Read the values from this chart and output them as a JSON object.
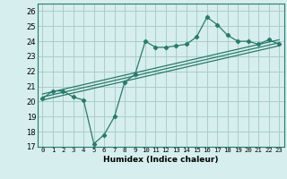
{
  "title": "",
  "xlabel": "Humidex (Indice chaleur)",
  "ylabel": "",
  "bg_color": "#d6eeee",
  "grid_color": "#aacccc",
  "line_color": "#2a7a6a",
  "xlim": [
    -0.5,
    23.5
  ],
  "ylim": [
    17,
    26.5
  ],
  "yticks": [
    17,
    18,
    19,
    20,
    21,
    22,
    23,
    24,
    25,
    26
  ],
  "xticks": [
    0,
    1,
    2,
    3,
    4,
    5,
    6,
    7,
    8,
    9,
    10,
    11,
    12,
    13,
    14,
    15,
    16,
    17,
    18,
    19,
    20,
    21,
    22,
    23
  ],
  "main_line_x": [
    0,
    1,
    2,
    3,
    4,
    5,
    6,
    7,
    8,
    9,
    10,
    11,
    12,
    13,
    14,
    15,
    16,
    17,
    18,
    19,
    20,
    21,
    22,
    23
  ],
  "main_line_y": [
    20.2,
    20.7,
    20.7,
    20.3,
    20.1,
    17.2,
    17.8,
    19.0,
    21.3,
    21.8,
    24.0,
    23.6,
    23.6,
    23.7,
    23.8,
    24.3,
    25.6,
    25.1,
    24.4,
    24.0,
    24.0,
    23.8,
    24.1,
    23.8
  ],
  "upper_line_x": [
    0,
    23
  ],
  "upper_line_y": [
    20.5,
    24.1
  ],
  "lower_line_x": [
    0,
    23
  ],
  "lower_line_y": [
    20.1,
    23.7
  ],
  "mid_line_x": [
    0,
    23
  ],
  "mid_line_y": [
    20.3,
    23.9
  ]
}
